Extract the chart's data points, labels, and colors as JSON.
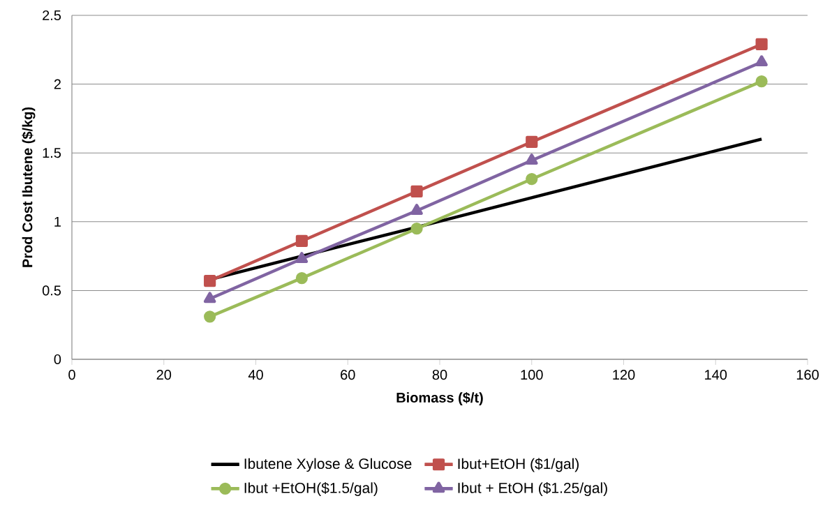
{
  "chart_data": {
    "type": "line",
    "xlabel": "Biomass ($/t)",
    "ylabel": "Prod Cost Ibutene ($/kg)",
    "x": [
      30,
      50,
      75,
      100,
      150
    ],
    "series": [
      {
        "name": "Ibutene Xylose & Glucose",
        "color": "#000000",
        "marker": "none",
        "values": [
          0.58,
          0.75,
          0.96,
          1.175,
          1.6
        ]
      },
      {
        "name": "Ibut+EtOH ($1/gal)",
        "color": "#c0504d",
        "marker": "square",
        "values": [
          0.57,
          0.86,
          1.22,
          1.58,
          2.29
        ]
      },
      {
        "name": "Ibut +EtOH($1.5/gal)",
        "color": "#9bbb59",
        "marker": "circle",
        "values": [
          0.31,
          0.59,
          0.95,
          1.31,
          2.02
        ]
      },
      {
        "name": "Ibut + EtOH ($1.25/gal)",
        "color": "#8064a2",
        "marker": "triangle",
        "values": [
          0.44,
          0.73,
          1.08,
          1.445,
          2.16
        ]
      }
    ],
    "xlim": [
      0,
      160
    ],
    "xticks": [
      0,
      20,
      40,
      60,
      80,
      100,
      120,
      140,
      160
    ],
    "ylim": [
      0,
      2.5
    ],
    "yticks": [
      0,
      0.5,
      1,
      1.5,
      2,
      2.5
    ],
    "grid": "y",
    "legend": "bottom",
    "line_style": "solid"
  }
}
